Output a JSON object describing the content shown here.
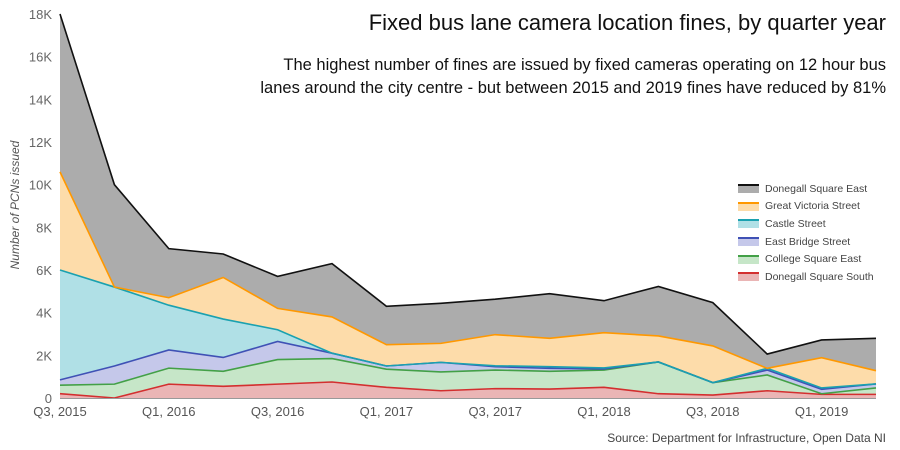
{
  "title": "Fixed bus lane camera location fines, by quarter year",
  "subtitle_lines": [
    "The highest number of fines are issued by fixed cameras operating on 12 hour bus",
    "lanes around the city centre - but between 2015 and 2019 fines have reduced by 81%"
  ],
  "source": "Source: Department for Infrastructure, Open Data NI",
  "chart_data": {
    "type": "area",
    "stacked": true,
    "title": "Fixed bus lane camera location fines, by quarter year",
    "xlabel": "",
    "ylabel": "Number of PCNs issued",
    "ylim": [
      0,
      18000
    ],
    "yticks": [
      0,
      2000,
      4000,
      6000,
      8000,
      10000,
      12000,
      14000,
      16000,
      18000
    ],
    "ytick_labels": [
      "0",
      "2K",
      "4K",
      "6K",
      "8K",
      "10K",
      "12K",
      "14K",
      "16K",
      "18K"
    ],
    "x": [
      "Q3, 2015",
      "Q4, 2015",
      "Q1, 2016",
      "Q2, 2016",
      "Q3, 2016",
      "Q4, 2016",
      "Q1, 2017",
      "Q2, 2017",
      "Q3, 2017",
      "Q4, 2017",
      "Q1, 2018",
      "Q2, 2018",
      "Q3, 2018",
      "Q4, 2018",
      "Q1, 2019",
      "Q2, 2019"
    ],
    "xtick_labels": [
      "Q3, 2015",
      "Q1, 2016",
      "Q3, 2016",
      "Q1, 2017",
      "Q3, 2017",
      "Q1, 2018",
      "Q3, 2018",
      "Q1, 2019"
    ],
    "grid": false,
    "legend_position": "right",
    "series": [
      {
        "name": "Donegall Square South",
        "line": "#d32f2f",
        "fill": "#eab5b5",
        "values": [
          200,
          0,
          650,
          550,
          650,
          750,
          500,
          340,
          440,
          420,
          500,
          200,
          140,
          340,
          170,
          170
        ]
      },
      {
        "name": "College Square East",
        "line": "#43a047",
        "fill": "#c6e6c8",
        "values": [
          400,
          650,
          750,
          700,
          1150,
          1100,
          850,
          880,
          870,
          830,
          810,
          1490,
          580,
          740,
          30,
          300
        ]
      },
      {
        "name": "East Bridge Street",
        "line": "#3f51b5",
        "fill": "#c5c8ea",
        "values": [
          250,
          850,
          850,
          650,
          850,
          250,
          150,
          450,
          160,
          140,
          50,
          0,
          0,
          230,
          210,
          190
        ]
      },
      {
        "name": "Castle Street",
        "line": "#1aa1b0",
        "fill": "#b0e0e6",
        "values": [
          5150,
          3700,
          2100,
          1800,
          550,
          0,
          0,
          0,
          40,
          80,
          50,
          0,
          0,
          80,
          60,
          0
        ]
      },
      {
        "name": "Great Victoria Street",
        "line": "#ff9800",
        "fill": "#fddcaa",
        "values": [
          4600,
          0,
          350,
          1950,
          1000,
          1700,
          1000,
          890,
          1460,
          1330,
          1650,
          1220,
          1720,
          0,
          1420,
          620
        ]
      },
      {
        "name": "Donegall Square East",
        "line": "#111111",
        "fill": "#acacac",
        "values": [
          7400,
          4800,
          2300,
          1100,
          1500,
          2500,
          1800,
          1880,
          1660,
          2090,
          1500,
          2320,
          2030,
          670,
          830,
          1520
        ]
      }
    ]
  }
}
